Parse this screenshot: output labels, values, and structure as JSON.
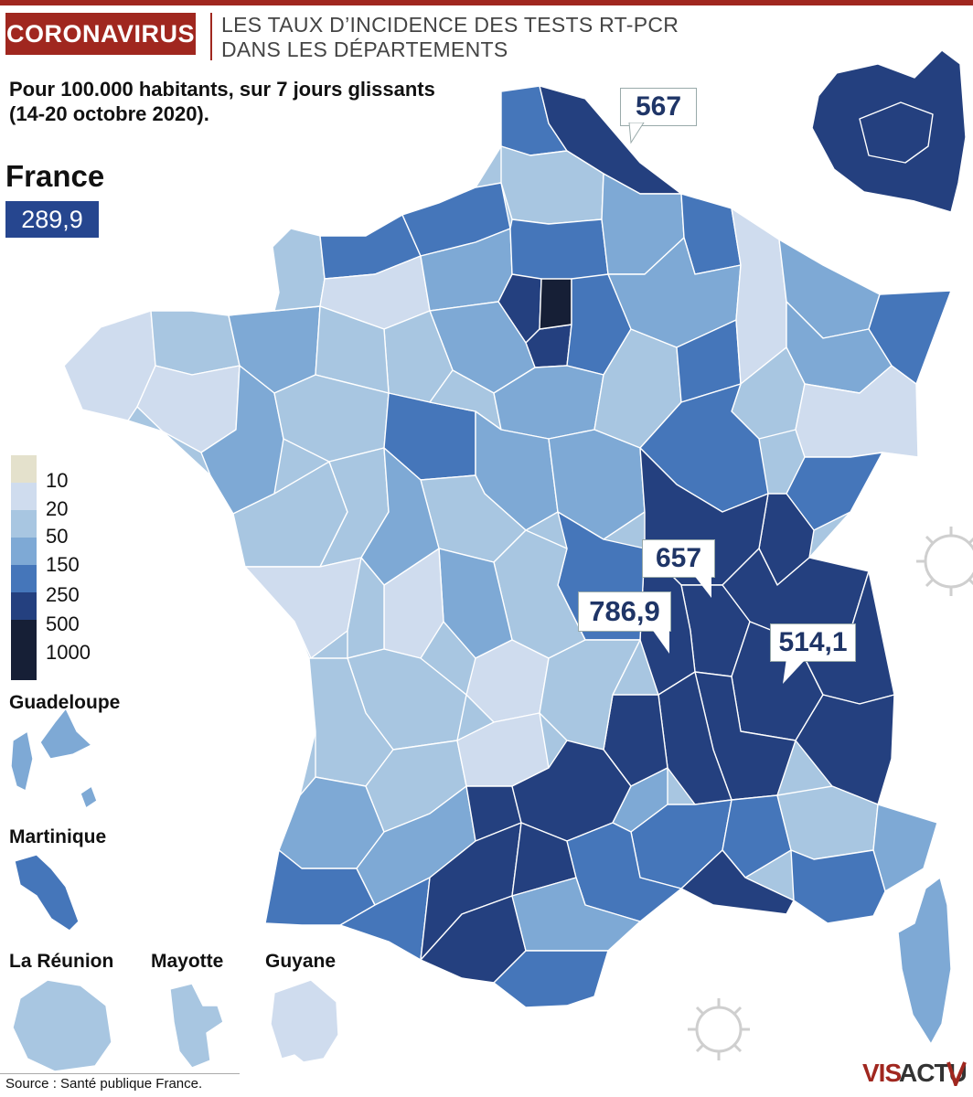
{
  "header": {
    "tag": "CORONAVIRUS",
    "title_line1": "LES TAUX D’INCIDENCE DES TESTS RT-PCR",
    "title_line2": "DANS LES DÉPARTEMENTS",
    "subtitle_line1": "Pour 100.000 habitants,  sur 7 jours glissants",
    "subtitle_line2": "(14-20 octobre 2020)."
  },
  "national": {
    "label": "France",
    "value": "289,9",
    "color": "#26468f"
  },
  "legend": [
    {
      "label": "10",
      "color": "#e4e1cc"
    },
    {
      "label": "20",
      "color": "#cfdcee"
    },
    {
      "label": "50",
      "color": "#a8c6e1"
    },
    {
      "label": "150",
      "color": "#7ea9d5"
    },
    {
      "label": "250",
      "color": "#4576ba"
    },
    {
      "label": "500",
      "color": "#24407f"
    },
    {
      "label": "1000",
      "color": "#161f36"
    }
  ],
  "callouts": [
    {
      "label": "567",
      "department": "Nord"
    },
    {
      "label": "657",
      "department": "Rhône"
    },
    {
      "label": "786,9",
      "department": "Loire"
    },
    {
      "label": "514,1",
      "department": "Isère"
    }
  ],
  "overseas": {
    "guadeloupe": "Guadeloupe",
    "martinique": "Martinique",
    "reunion": "La Réunion",
    "mayotte": "Mayotte",
    "guyane": "Guyane"
  },
  "source": "Source : Santé publique France.",
  "logo": {
    "part1": "VIS",
    "part2": "ACTU"
  },
  "colors": {
    "brand_red": "#a0271f",
    "dark_navy": "#24407f"
  }
}
